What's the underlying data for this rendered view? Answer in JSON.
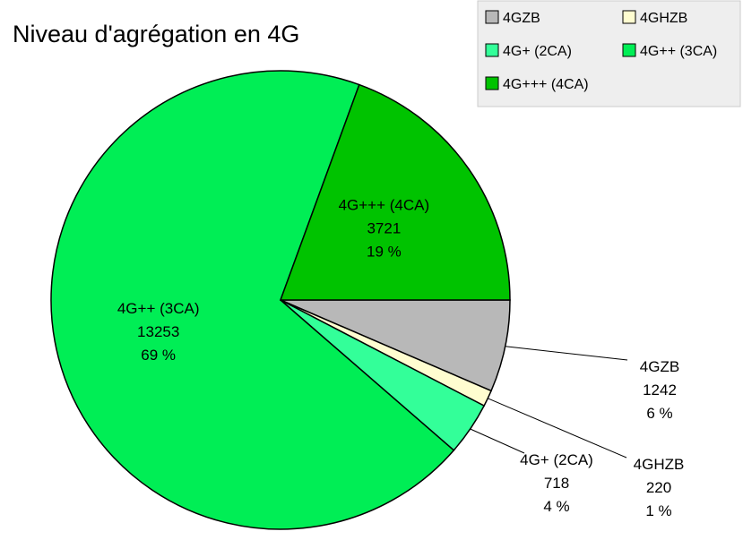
{
  "chart_data": {
    "type": "pie",
    "title": "Niveau d'agrégation en 4G",
    "legend_position": "top-right",
    "slices": [
      {
        "name": "4GZB",
        "value": 1242,
        "percent_label": "6 %",
        "color": "#b8b8b8"
      },
      {
        "name": "4GHZB",
        "value": 220,
        "percent_label": "1 %",
        "color": "#fffdd0"
      },
      {
        "name": "4G+ (2CA)",
        "value": 718,
        "percent_label": "4 %",
        "color": "#33ff99"
      },
      {
        "name": "4G++ (3CA)",
        "value": 13253,
        "percent_label": "69 %",
        "color": "#00ee55"
      },
      {
        "name": "4G+++ (4CA)",
        "value": 3721,
        "percent_label": "19 %",
        "color": "#00c300"
      }
    ]
  }
}
